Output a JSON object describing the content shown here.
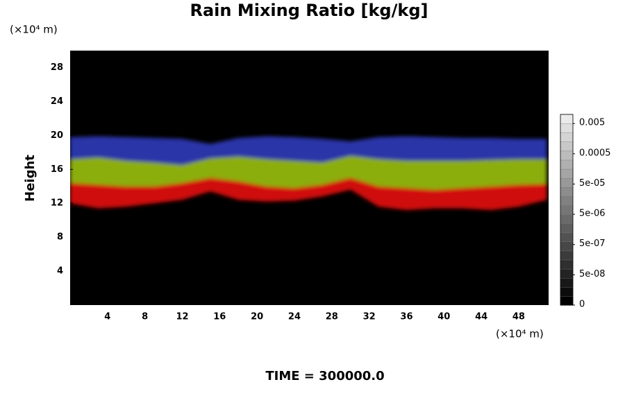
{
  "chart_data": {
    "type": "contour",
    "title": "Rain Mixing Ratio [kg/kg]",
    "y_label": "Height",
    "y_unit": "(×10⁴ m)",
    "x_unit": "(×10⁴ m)",
    "footer": "TIME = 300000.0",
    "background": "#000000",
    "xlim": [
      0,
      51.2
    ],
    "ylim": [
      0,
      30
    ],
    "xticks": [
      4,
      8,
      12,
      16,
      20,
      24,
      28,
      32,
      36,
      40,
      44,
      48
    ],
    "yticks": [
      4,
      8,
      12,
      16,
      20,
      24,
      28
    ],
    "x": [
      0,
      3,
      6,
      9,
      12,
      15,
      18,
      21,
      24,
      27,
      30,
      33,
      36,
      39,
      42,
      45,
      48,
      51
    ],
    "layers": [
      {
        "color": "#d01010",
        "top": [
          14.4,
          14.2,
          14.0,
          14.0,
          14.4,
          15.0,
          14.6,
          14.0,
          13.8,
          14.2,
          15.0,
          14.0,
          13.8,
          13.6,
          13.8,
          14.0,
          14.2,
          14.3
        ],
        "bottom": [
          12.0,
          11.4,
          11.6,
          12.0,
          12.4,
          13.4,
          12.4,
          12.2,
          12.3,
          12.8,
          13.6,
          11.6,
          11.2,
          11.4,
          11.4,
          11.2,
          11.6,
          12.4
        ]
      },
      {
        "color": "#8cae10",
        "top": [
          17.2,
          17.4,
          17.0,
          16.8,
          16.5,
          17.3,
          17.5,
          17.2,
          17.0,
          16.8,
          17.6,
          17.2,
          17.0,
          17.0,
          17.0,
          17.1,
          17.2,
          17.2
        ],
        "bottom": [
          14.4,
          14.2,
          14.0,
          14.0,
          14.4,
          15.0,
          14.6,
          14.0,
          13.8,
          14.2,
          15.0,
          14.0,
          13.8,
          13.6,
          13.8,
          14.0,
          14.2,
          14.3
        ]
      },
      {
        "color": "#2a35a8",
        "top": [
          19.8,
          19.9,
          19.8,
          19.7,
          19.6,
          19.0,
          19.7,
          19.9,
          19.8,
          19.6,
          19.3,
          19.8,
          19.9,
          19.8,
          19.7,
          19.7,
          19.6,
          19.6
        ],
        "bottom": [
          17.2,
          17.4,
          17.0,
          16.8,
          16.5,
          17.3,
          17.5,
          17.2,
          17.0,
          16.8,
          17.6,
          17.2,
          17.0,
          17.0,
          17.0,
          17.1,
          17.2,
          17.2
        ]
      }
    ],
    "colorbar": {
      "log": true,
      "clim": [
        5e-09,
        0.01
      ],
      "ticks": [
        0,
        {
          "value": 5e-08,
          "label": "5e-08"
        },
        {
          "value": 5e-07,
          "label": "5e-07"
        },
        {
          "value": 5e-06,
          "label": "5e-06"
        },
        {
          "value": 5e-05,
          "label": "5e-05"
        },
        0.0005,
        0.005
      ]
    }
  }
}
